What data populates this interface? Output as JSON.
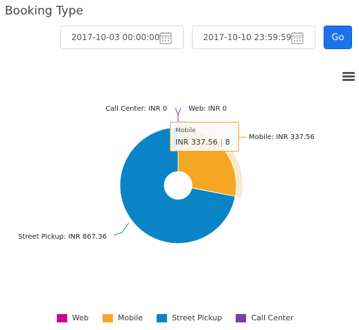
{
  "page": {
    "title": "Booking Type"
  },
  "filters": {
    "start_date": "2017-10-03 00:00:00",
    "end_date": "2017-10-10 23:59:59",
    "go_label": "Go",
    "calendar_icon": "calendar-icon"
  },
  "menu": {
    "icon": "hamburger-menu-icon"
  },
  "tooltip": {
    "name": "Mobile",
    "value": "INR 337.56",
    "separator": "|",
    "count": "8"
  },
  "chart_data": {
    "type": "pie",
    "title": "",
    "donut": true,
    "series": [
      {
        "name": "Web",
        "value": 0,
        "color": "#cc0099",
        "label": "Web: INR 0"
      },
      {
        "name": "Mobile",
        "value": 337.56,
        "color": "#f5a623",
        "label": "Mobile: INR 337.56"
      },
      {
        "name": "Street Pickup",
        "value": 867.36,
        "color": "#0a84c6",
        "label": "Street Pickup: INR 867.36"
      },
      {
        "name": "Call Center",
        "value": 0,
        "color": "#7b3fa8",
        "label": "Call Center: INR 0"
      }
    ],
    "legend": {
      "placement": "bottom"
    },
    "hovered": "Mobile"
  }
}
